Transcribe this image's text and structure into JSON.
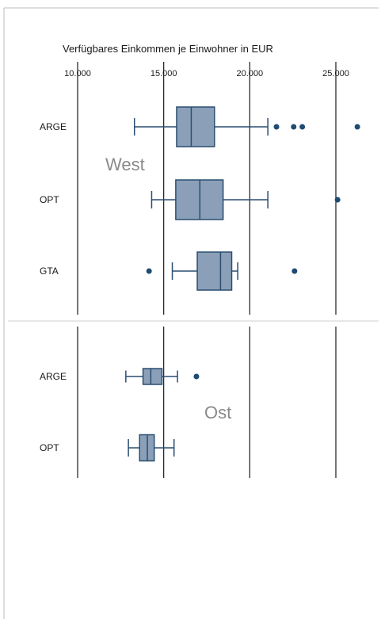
{
  "chart_data": {
    "type": "boxplot",
    "title": "Verfügbares Einkommen je Einwohner in EUR",
    "x_ticks": [
      "10.000",
      "15.000",
      "20.000",
      "25.000"
    ],
    "xlim": [
      10000,
      26000
    ],
    "colors": {
      "box_fill": "#8ba0b8",
      "box_stroke": "#2a4d70",
      "outlier": "#1e4b73",
      "gridline": "#1a1a1a",
      "region_label": "#8a8a8a"
    },
    "groups": [
      {
        "region": "West",
        "rows": [
          {
            "category": "ARGE",
            "whisker_low": 13300,
            "q1": 15750,
            "median": 16600,
            "q3": 17950,
            "whisker_high": 21050,
            "outliers": [
              21550,
              22550,
              23050,
              26250
            ]
          },
          {
            "category": "OPT",
            "whisker_low": 14300,
            "q1": 15700,
            "median": 17100,
            "q3": 18450,
            "whisker_high": 21050,
            "outliers": [
              25100
            ]
          },
          {
            "category": "GTA",
            "whisker_low": 15500,
            "q1": 16950,
            "median": 18300,
            "q3": 18950,
            "whisker_high": 19300,
            "outliers": [
              14150,
              22600
            ]
          }
        ]
      },
      {
        "region": "Ost",
        "rows": [
          {
            "category": "ARGE",
            "whisker_low": 12800,
            "q1": 13800,
            "median": 14250,
            "q3": 14900,
            "whisker_high": 15800,
            "outliers": [
              16900
            ]
          },
          {
            "category": "OPT",
            "whisker_low": 12950,
            "q1": 13600,
            "median": 14050,
            "q3": 14450,
            "whisker_high": 15600,
            "outliers": []
          }
        ]
      }
    ]
  }
}
